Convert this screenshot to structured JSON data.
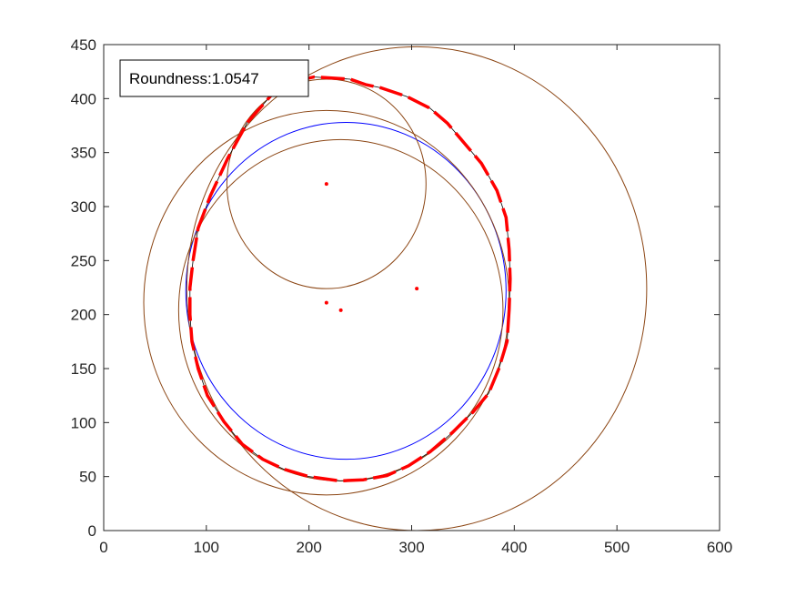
{
  "chart_data": {
    "type": "scatter",
    "xlim": [
      0,
      600
    ],
    "ylim": [
      0,
      450
    ],
    "xticks": [
      0,
      100,
      200,
      300,
      400,
      500,
      600
    ],
    "yticks": [
      0,
      50,
      100,
      150,
      200,
      250,
      300,
      350,
      400,
      450
    ],
    "grid": false,
    "annotation": {
      "text": "Roundness:1.0547"
    },
    "circles": [
      {
        "role": "fit",
        "color": "#0000ff",
        "cx": 236,
        "cy": 222,
        "r": 156
      },
      {
        "role": "inscribed",
        "color": "#8B4513",
        "cx": 231,
        "cy": 204,
        "r": 158
      },
      {
        "role": "circumscribed",
        "color": "#8B4513",
        "cx": 217,
        "cy": 211,
        "r": 178
      },
      {
        "role": "arc",
        "color": "#8B4513",
        "cx": 217,
        "cy": 321,
        "r": 97
      },
      {
        "role": "arc",
        "color": "#8B4513",
        "cx": 305,
        "cy": 224,
        "r": 224
      }
    ],
    "centers": [
      {
        "x": 217,
        "y": 321
      },
      {
        "x": 217,
        "y": 211
      },
      {
        "x": 231,
        "y": 204
      },
      {
        "x": 305,
        "y": 224
      }
    ],
    "profile": {
      "color": "#ff0000",
      "points": [
        [
          395,
          205
        ],
        [
          393,
          175
        ],
        [
          385,
          150
        ],
        [
          375,
          127
        ],
        [
          360,
          110
        ],
        [
          340,
          91
        ],
        [
          318,
          73
        ],
        [
          297,
          60
        ],
        [
          276,
          51
        ],
        [
          253,
          47
        ],
        [
          230,
          46
        ],
        [
          200,
          50
        ],
        [
          175,
          57
        ],
        [
          155,
          66
        ],
        [
          135,
          80
        ],
        [
          117,
          101
        ],
        [
          101,
          125
        ],
        [
          92,
          150
        ],
        [
          86,
          175
        ],
        [
          84,
          200
        ],
        [
          84,
          225
        ],
        [
          87,
          250
        ],
        [
          92,
          280
        ],
        [
          104,
          310
        ],
        [
          121,
          345
        ],
        [
          140,
          378
        ],
        [
          165,
          405
        ],
        [
          190,
          417
        ],
        [
          205,
          420
        ],
        [
          240,
          418
        ],
        [
          255,
          413
        ],
        [
          270,
          410
        ],
        [
          295,
          402
        ],
        [
          318,
          391
        ],
        [
          335,
          377
        ],
        [
          352,
          358
        ],
        [
          368,
          340
        ],
        [
          383,
          315
        ],
        [
          392,
          290
        ],
        [
          395,
          260
        ],
        [
          396,
          233
        ]
      ]
    }
  }
}
